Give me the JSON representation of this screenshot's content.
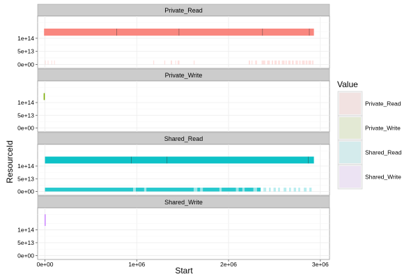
{
  "chart_data": {
    "type": "strip-facet",
    "xlabel": "Start",
    "ylabel": "ResourceId",
    "legend_title": "Value",
    "legend_position": "right",
    "xlim": [
      -80000,
      3100000
    ],
    "ylim": [
      -15000000000000,
      185000000000000
    ],
    "x_ticks": [
      {
        "value": 0,
        "label": "0e+00"
      },
      {
        "value": 1000000,
        "label": "1e+06"
      },
      {
        "value": 2000000,
        "label": "2e+06"
      },
      {
        "value": 3000000,
        "label": "3e+06"
      }
    ],
    "y_ticks": [
      {
        "value": 0,
        "label": "0e+00"
      },
      {
        "value": 50000000000000,
        "label": "5e+13"
      },
      {
        "value": 100000000000000,
        "label": "1e+14"
      }
    ],
    "series_colors": {
      "Private_Read": "#f8766d",
      "Private_Write": "#7cae00",
      "Shared_Read": "#00bfc4",
      "Shared_Write": "#c77cff"
    },
    "legend": [
      "Private_Read",
      "Private_Write",
      "Shared_Read",
      "Shared_Write"
    ],
    "grid": true,
    "panels": [
      {
        "name": "Private_Read",
        "bands": [
          {
            "x0": -10000,
            "x1": 2930000,
            "y0": 110000000000000,
            "y1": 137000000000000,
            "opacity": 0.88
          }
        ],
        "ticks_x": [
          780000,
          1460000,
          2370000,
          2880000
        ],
        "ticks_y0": 110000000000000,
        "ticks_y1": 137000000000000,
        "sparse": [
          {
            "x": 0,
            "w": 8000
          },
          {
            "x": 30000,
            "w": 8000
          },
          {
            "x": 70000,
            "w": 7000
          },
          {
            "x": 100000,
            "w": 8000
          },
          {
            "x": 1180000,
            "w": 9000
          },
          {
            "x": 1300000,
            "w": 10000
          },
          {
            "x": 1370000,
            "w": 15000
          },
          {
            "x": 1420000,
            "w": 8000
          },
          {
            "x": 1445000,
            "w": 20000
          },
          {
            "x": 1620000,
            "w": 10000
          },
          {
            "x": 2220000,
            "w": 15000
          },
          {
            "x": 2250000,
            "w": 10000
          },
          {
            "x": 2290000,
            "w": 20000
          },
          {
            "x": 2360000,
            "w": 40000
          },
          {
            "x": 2420000,
            "w": 30000
          },
          {
            "x": 2470000,
            "w": 15000
          },
          {
            "x": 2500000,
            "w": 25000
          },
          {
            "x": 2540000,
            "w": 20000
          },
          {
            "x": 2580000,
            "w": 30000
          },
          {
            "x": 2620000,
            "w": 15000
          },
          {
            "x": 2650000,
            "w": 25000
          },
          {
            "x": 2690000,
            "w": 20000
          },
          {
            "x": 2730000,
            "w": 25000
          },
          {
            "x": 2770000,
            "w": 15000
          },
          {
            "x": 2800000,
            "w": 30000
          },
          {
            "x": 2840000,
            "w": 20000
          },
          {
            "x": 2870000,
            "w": 30000
          },
          {
            "x": 2910000,
            "w": 15000
          }
        ],
        "sparse_y0": 0,
        "sparse_y1": 15000000000000,
        "sparse_opacity": 0.22
      },
      {
        "name": "Private_Write",
        "bands": [
          {
            "x0": -14000,
            "x1": -2000,
            "y0": 110000000000000,
            "y1": 137000000000000,
            "opacity": 1
          }
        ],
        "ticks_x": [],
        "sparse": []
      },
      {
        "name": "Shared_Read",
        "bands": [
          {
            "x0": 0,
            "x1": 2930000,
            "y0": 110000000000000,
            "y1": 137000000000000,
            "opacity": 0.95
          },
          {
            "x0": 0,
            "x1": 2350000,
            "y0": 0,
            "y1": 15000000000000,
            "opacity": 0.85
          }
        ],
        "ticks_x": [
          940000,
          1330000,
          2870000
        ],
        "ticks_y0": 110000000000000,
        "ticks_y1": 137000000000000,
        "sparse": [
          {
            "x": 2380000,
            "w": 30000
          },
          {
            "x": 2440000,
            "w": 20000
          },
          {
            "x": 2490000,
            "w": 25000
          },
          {
            "x": 2540000,
            "w": 20000
          },
          {
            "x": 2600000,
            "w": 30000
          },
          {
            "x": 2660000,
            "w": 20000
          },
          {
            "x": 2710000,
            "w": 25000
          },
          {
            "x": 2760000,
            "w": 20000
          },
          {
            "x": 2820000,
            "w": 30000
          },
          {
            "x": 2880000,
            "w": 25000
          }
        ],
        "sparse_y0": 0,
        "sparse_y1": 15000000000000,
        "sparse_opacity": 0.28,
        "gaps": [
          {
            "x": 960000,
            "w": 30000
          },
          {
            "x": 1080000,
            "w": 25000
          },
          {
            "x": 1620000,
            "w": 40000
          },
          {
            "x": 1690000,
            "w": 30000
          },
          {
            "x": 1900000,
            "w": 25000
          },
          {
            "x": 2080000,
            "w": 30000
          },
          {
            "x": 2150000,
            "w": 25000
          },
          {
            "x": 2270000,
            "w": 40000
          }
        ],
        "gaps_y0": 0,
        "gaps_y1": 15000000000000
      },
      {
        "name": "Shared_Write",
        "bands": [
          {
            "x0": -4000,
            "x1": 6000,
            "y0": 115000000000000,
            "y1": 160000000000000,
            "opacity": 0.95
          }
        ],
        "ticks_x": [],
        "sparse": []
      }
    ]
  }
}
